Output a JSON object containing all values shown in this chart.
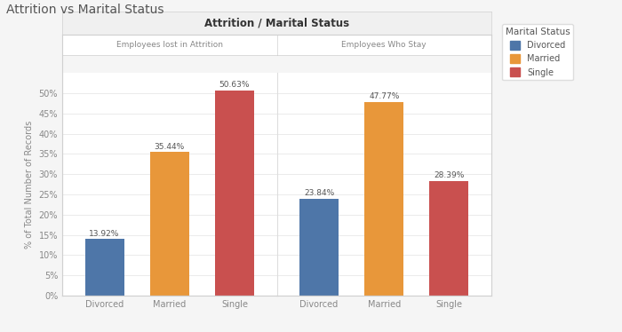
{
  "title_main": "Attrition vs Marital Status",
  "title_chart": "Attrition / Marital Status",
  "panel1_title": "Employees lost in Attrition",
  "panel2_title": "Employees Who Stay",
  "categories": [
    "Divorced",
    "Married",
    "Single"
  ],
  "panel1_values": [
    13.92,
    35.44,
    50.63
  ],
  "panel2_values": [
    23.84,
    47.77,
    28.39
  ],
  "panel1_labels": [
    "13.92%",
    "35.44%",
    "50.63%"
  ],
  "panel2_labels": [
    "23.84%",
    "47.77%",
    "28.39%"
  ],
  "bar_colors": [
    "#4e76a8",
    "#e8973a",
    "#c9504f"
  ],
  "ylabel": "% of Total Number of Records",
  "ylim": [
    0,
    55
  ],
  "yticks": [
    0,
    5,
    10,
    15,
    20,
    25,
    30,
    35,
    40,
    45,
    50
  ],
  "ytick_labels": [
    "0%",
    "5%",
    "10%",
    "15%",
    "20%",
    "25%",
    "30%",
    "35%",
    "40%",
    "45%",
    "50%"
  ],
  "legend_labels": [
    "Divorced",
    "Married",
    "Single"
  ],
  "legend_title": "Marital Status",
  "background_color": "#f5f5f5",
  "panel_bg": "#ffffff",
  "header_bg": "#f0f0f0",
  "subheader_bg": "#fafafa",
  "axis_fontsize": 7,
  "bar_label_fontsize": 6.5,
  "title_fontsize": 8.5,
  "subheader_fontsize": 6.5,
  "main_title_fontsize": 10
}
